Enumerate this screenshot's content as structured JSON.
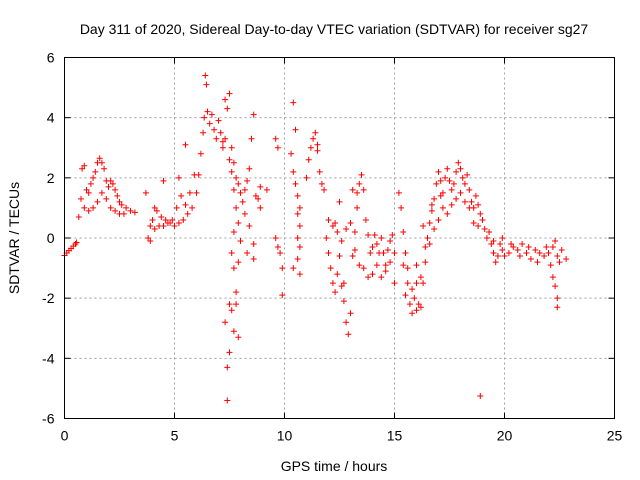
{
  "chart_data": {
    "type": "scatter",
    "title": "Day 311 of 2020, Sidereal Day-to-day VTEC variation (SDTVAR) for receiver sg27",
    "xlabel": "GPS time / hours",
    "ylabel": "SDTVAR / TECUs",
    "xlim": [
      0,
      25
    ],
    "ylim": [
      -6,
      6
    ],
    "xticks": [
      0,
      5,
      10,
      15,
      20,
      25
    ],
    "xtick_labels": [
      "0",
      "5",
      "10",
      "15",
      "20",
      "25"
    ],
    "yticks": [
      -6,
      -4,
      -2,
      0,
      2,
      4,
      6
    ],
    "ytick_labels": [
      "-6",
      "-4",
      "-2",
      "0",
      "2",
      "4",
      "6"
    ],
    "grid": true,
    "marker": "+",
    "series": [
      {
        "name": "sg27",
        "color": "#ff0000",
        "points": [
          [
            0.0,
            -0.58
          ],
          [
            0.1,
            -0.5
          ],
          [
            0.2,
            -0.42
          ],
          [
            0.3,
            -0.35
          ],
          [
            0.4,
            -0.27
          ],
          [
            0.5,
            -0.2
          ],
          [
            0.55,
            -0.15
          ],
          [
            0.65,
            0.7
          ],
          [
            0.75,
            1.3
          ],
          [
            0.8,
            2.3
          ],
          [
            0.9,
            2.4
          ],
          [
            1.0,
            1.6
          ],
          [
            1.1,
            1.5
          ],
          [
            1.2,
            1.8
          ],
          [
            1.3,
            2.0
          ],
          [
            1.4,
            2.2
          ],
          [
            1.5,
            2.5
          ],
          [
            1.6,
            2.65
          ],
          [
            1.7,
            2.5
          ],
          [
            1.8,
            2.3
          ],
          [
            1.9,
            1.9
          ],
          [
            2.0,
            1.7
          ],
          [
            2.1,
            1.9
          ],
          [
            2.2,
            1.8
          ],
          [
            2.3,
            1.6
          ],
          [
            2.4,
            1.4
          ],
          [
            2.5,
            1.2
          ],
          [
            2.6,
            1.1
          ],
          [
            2.8,
            1.0
          ],
          [
            3.0,
            0.9
          ],
          [
            3.2,
            0.85
          ],
          [
            0.9,
            1.0
          ],
          [
            1.1,
            0.9
          ],
          [
            1.3,
            1.0
          ],
          [
            1.5,
            1.2
          ],
          [
            1.7,
            1.5
          ],
          [
            1.9,
            1.3
          ],
          [
            2.1,
            1.0
          ],
          [
            2.3,
            0.9
          ],
          [
            2.5,
            0.8
          ],
          [
            2.7,
            0.8
          ],
          [
            3.7,
            1.5
          ],
          [
            3.8,
            0.0
          ],
          [
            3.9,
            -0.1
          ],
          [
            4.0,
            0.6
          ],
          [
            4.1,
            1.0
          ],
          [
            4.2,
            0.9
          ],
          [
            4.4,
            0.7
          ],
          [
            4.6,
            0.6
          ],
          [
            4.8,
            0.5
          ],
          [
            5.0,
            0.4
          ],
          [
            5.2,
            0.5
          ],
          [
            5.4,
            0.6
          ],
          [
            5.6,
            0.8
          ],
          [
            5.8,
            1.0
          ],
          [
            6.0,
            1.5
          ],
          [
            6.1,
            2.1
          ],
          [
            6.2,
            2.8
          ],
          [
            6.3,
            3.5
          ],
          [
            6.35,
            4.0
          ],
          [
            3.9,
            0.4
          ],
          [
            4.1,
            0.3
          ],
          [
            4.3,
            0.4
          ],
          [
            4.5,
            0.4
          ],
          [
            4.7,
            0.5
          ],
          [
            4.9,
            0.6
          ],
          [
            5.1,
            1.0
          ],
          [
            5.3,
            1.4
          ],
          [
            5.5,
            1.1
          ],
          [
            5.7,
            1.5
          ],
          [
            5.9,
            2.1
          ],
          [
            4.5,
            1.9
          ],
          [
            5.2,
            2.0
          ],
          [
            5.5,
            3.1
          ],
          [
            6.4,
            5.4
          ],
          [
            6.45,
            5.1
          ],
          [
            6.5,
            4.2
          ],
          [
            6.6,
            3.8
          ],
          [
            6.7,
            4.1
          ],
          [
            6.8,
            3.6
          ],
          [
            6.9,
            3.3
          ],
          [
            7.0,
            3.9
          ],
          [
            7.1,
            3.5
          ],
          [
            7.2,
            3.2
          ],
          [
            7.3,
            4.6
          ],
          [
            7.4,
            4.3
          ],
          [
            7.5,
            4.8
          ],
          [
            7.6,
            3.0
          ],
          [
            7.7,
            2.5
          ],
          [
            7.8,
            2.0
          ],
          [
            7.9,
            1.8
          ],
          [
            8.0,
            1.5
          ],
          [
            8.1,
            1.2
          ],
          [
            8.2,
            1.6
          ],
          [
            8.3,
            1.9
          ],
          [
            8.4,
            2.3
          ],
          [
            8.5,
            3.3
          ],
          [
            8.6,
            4.1
          ],
          [
            8.7,
            1.4
          ],
          [
            8.8,
            1.3
          ],
          [
            8.9,
            1.0
          ],
          [
            7.2,
            3.0
          ],
          [
            7.3,
            3.3
          ],
          [
            7.5,
            2.6
          ],
          [
            7.6,
            2.2
          ],
          [
            7.7,
            1.6
          ],
          [
            7.8,
            1.0
          ],
          [
            7.9,
            0.5
          ],
          [
            8.0,
            -0.1
          ],
          [
            8.2,
            0.8
          ],
          [
            8.4,
            0.4
          ],
          [
            8.6,
            -0.2
          ],
          [
            8.6,
            -0.7
          ],
          [
            8.3,
            -0.5
          ],
          [
            7.4,
            -5.4
          ],
          [
            7.4,
            -4.3
          ],
          [
            7.5,
            -3.8
          ],
          [
            7.3,
            -2.8
          ],
          [
            7.6,
            -2.4
          ],
          [
            7.8,
            -2.2
          ],
          [
            7.7,
            -3.1
          ],
          [
            7.9,
            -3.3
          ],
          [
            7.5,
            -2.2
          ],
          [
            7.8,
            -1.8
          ],
          [
            7.7,
            -1.0
          ],
          [
            7.9,
            -0.8
          ],
          [
            7.6,
            -0.5
          ],
          [
            7.7,
            0.2
          ],
          [
            9.2,
            1.6
          ],
          [
            8.9,
            1.7
          ],
          [
            9.6,
            3.3
          ],
          [
            9.7,
            3.0
          ],
          [
            9.6,
            0.0
          ],
          [
            9.7,
            -0.3
          ],
          [
            9.8,
            -0.5
          ],
          [
            9.9,
            -1.0
          ],
          [
            9.9,
            -1.9
          ],
          [
            10.4,
            4.5
          ],
          [
            10.5,
            3.6
          ],
          [
            10.3,
            2.8
          ],
          [
            10.4,
            2.2
          ],
          [
            10.5,
            1.8
          ],
          [
            10.6,
            1.4
          ],
          [
            10.7,
            1.0
          ],
          [
            10.6,
            0.8
          ],
          [
            10.7,
            0.4
          ],
          [
            10.6,
            0.0
          ],
          [
            10.7,
            -0.3
          ],
          [
            10.6,
            -0.7
          ],
          [
            10.7,
            -1.2
          ],
          [
            10.4,
            -1.0
          ],
          [
            11.0,
            2.0
          ],
          [
            11.1,
            2.6
          ],
          [
            11.2,
            3.0
          ],
          [
            11.3,
            3.3
          ],
          [
            11.4,
            3.5
          ],
          [
            11.5,
            2.9
          ],
          [
            11.6,
            2.2
          ],
          [
            11.7,
            1.8
          ],
          [
            11.8,
            1.6
          ],
          [
            11.5,
            3.1
          ],
          [
            11.9,
            0.0
          ],
          [
            12.0,
            -0.5
          ],
          [
            12.1,
            -1.0
          ],
          [
            12.2,
            -1.5
          ],
          [
            12.3,
            -1.8
          ],
          [
            12.4,
            -1.2
          ],
          [
            12.5,
            -0.6
          ],
          [
            12.6,
            -1.6
          ],
          [
            12.7,
            -2.1
          ],
          [
            12.8,
            -2.8
          ],
          [
            12.9,
            -3.2
          ],
          [
            13.0,
            -2.5
          ],
          [
            13.1,
            -0.6
          ],
          [
            13.2,
            0.2
          ],
          [
            13.3,
            1.0
          ],
          [
            13.4,
            1.8
          ],
          [
            13.5,
            2.1
          ],
          [
            13.6,
            1.6
          ],
          [
            13.7,
            0.6
          ],
          [
            13.8,
            0.1
          ],
          [
            13.9,
            -0.5
          ],
          [
            14.0,
            -0.3
          ],
          [
            14.1,
            0.1
          ],
          [
            14.2,
            -0.2
          ],
          [
            14.3,
            -0.5
          ],
          [
            14.4,
            0.0
          ],
          [
            14.5,
            -0.5
          ],
          [
            14.6,
            -0.9
          ],
          [
            14.7,
            -0.4
          ],
          [
            14.8,
            -0.1
          ],
          [
            14.9,
            0.1
          ],
          [
            15.0,
            -0.5
          ],
          [
            12.0,
            0.6
          ],
          [
            12.2,
            0.4
          ],
          [
            12.4,
            0.2
          ],
          [
            12.6,
            -0.1
          ],
          [
            12.8,
            0.3
          ],
          [
            13.0,
            0.5
          ],
          [
            13.2,
            -0.4
          ],
          [
            13.4,
            -0.9
          ],
          [
            13.6,
            -1.0
          ],
          [
            13.8,
            -1.3
          ],
          [
            14.0,
            -1.2
          ],
          [
            14.2,
            -0.9
          ],
          [
            14.4,
            -1.3
          ],
          [
            14.6,
            -1.1
          ],
          [
            14.8,
            -0.8
          ],
          [
            15.0,
            -1.5
          ],
          [
            13.3,
            1.5
          ],
          [
            13.1,
            1.6
          ],
          [
            12.7,
            -1.5
          ],
          [
            12.5,
            1.2
          ],
          [
            12.3,
            0.5
          ],
          [
            15.2,
            1.5
          ],
          [
            15.3,
            1.0
          ],
          [
            15.4,
            0.2
          ],
          [
            15.5,
            -0.5
          ],
          [
            15.6,
            -1.5
          ],
          [
            15.7,
            -2.2
          ],
          [
            15.8,
            -2.5
          ],
          [
            15.9,
            -2.0
          ],
          [
            16.0,
            -1.5
          ],
          [
            16.1,
            -2.2
          ],
          [
            16.2,
            -2.3
          ],
          [
            16.3,
            -1.5
          ],
          [
            16.4,
            -0.8
          ],
          [
            16.5,
            0.0
          ],
          [
            16.6,
            0.5
          ],
          [
            16.7,
            0.9
          ],
          [
            16.8,
            1.3
          ],
          [
            16.9,
            1.8
          ],
          [
            17.0,
            2.2
          ],
          [
            17.1,
            1.9
          ],
          [
            17.2,
            1.5
          ],
          [
            17.3,
            2.0
          ],
          [
            17.4,
            2.3
          ],
          [
            17.5,
            1.9
          ],
          [
            17.6,
            1.6
          ],
          [
            17.7,
            1.8
          ],
          [
            17.8,
            2.2
          ],
          [
            17.9,
            2.5
          ],
          [
            18.0,
            2.3
          ],
          [
            18.1,
            2.0
          ],
          [
            18.2,
            1.8
          ],
          [
            18.3,
            2.1
          ],
          [
            18.4,
            1.6
          ],
          [
            18.5,
            1.2
          ],
          [
            18.6,
            1.0
          ],
          [
            18.7,
            1.4
          ],
          [
            18.8,
            1.1
          ],
          [
            18.9,
            0.8
          ],
          [
            19.0,
            0.6
          ],
          [
            15.6,
            -1.0
          ],
          [
            15.8,
            -1.7
          ],
          [
            16.0,
            -0.9
          ],
          [
            16.2,
            -1.3
          ],
          [
            16.4,
            -0.3
          ],
          [
            16.6,
            -0.2
          ],
          [
            16.8,
            0.3
          ],
          [
            17.0,
            0.6
          ],
          [
            17.2,
            1.0
          ],
          [
            17.4,
            0.8
          ],
          [
            17.6,
            1.1
          ],
          [
            17.8,
            1.3
          ],
          [
            18.0,
            1.5
          ],
          [
            18.2,
            1.2
          ],
          [
            18.4,
            1.0
          ],
          [
            18.6,
            0.5
          ],
          [
            18.8,
            0.4
          ],
          [
            16.3,
            0.4
          ],
          [
            16.7,
            1.1
          ],
          [
            17.1,
            1.4
          ],
          [
            15.4,
            -0.9
          ],
          [
            15.5,
            -1.9
          ],
          [
            16.0,
            -2.4
          ],
          [
            19.1,
            0.3
          ],
          [
            19.2,
            0.0
          ],
          [
            19.3,
            0.2
          ],
          [
            19.4,
            -0.2
          ],
          [
            19.5,
            -0.5
          ],
          [
            19.6,
            -0.8
          ],
          [
            19.7,
            -0.6
          ],
          [
            19.8,
            -0.2
          ],
          [
            19.9,
            -0.4
          ],
          [
            20.0,
            -0.6
          ],
          [
            20.2,
            -0.5
          ],
          [
            20.4,
            -0.3
          ],
          [
            20.6,
            -0.4
          ],
          [
            20.8,
            -0.2
          ],
          [
            21.0,
            -0.5
          ],
          [
            21.2,
            -0.7
          ],
          [
            21.4,
            -0.4
          ],
          [
            21.6,
            -0.5
          ],
          [
            21.8,
            -0.6
          ],
          [
            22.0,
            -0.5
          ],
          [
            22.2,
            -0.3
          ],
          [
            22.4,
            -0.6
          ],
          [
            22.6,
            -0.4
          ],
          [
            22.8,
            -0.7
          ],
          [
            19.5,
            -0.1
          ],
          [
            19.9,
            0.0
          ],
          [
            20.3,
            -0.2
          ],
          [
            20.7,
            -0.6
          ],
          [
            21.1,
            -0.3
          ],
          [
            21.5,
            -0.8
          ],
          [
            21.9,
            -0.3
          ],
          [
            22.3,
            -0.1
          ],
          [
            22.1,
            -0.9
          ],
          [
            22.2,
            -1.3
          ],
          [
            22.3,
            -1.6
          ],
          [
            22.4,
            -2.0
          ],
          [
            22.4,
            -2.3
          ],
          [
            22.5,
            -0.8
          ],
          [
            18.9,
            -5.25
          ]
        ]
      }
    ]
  }
}
